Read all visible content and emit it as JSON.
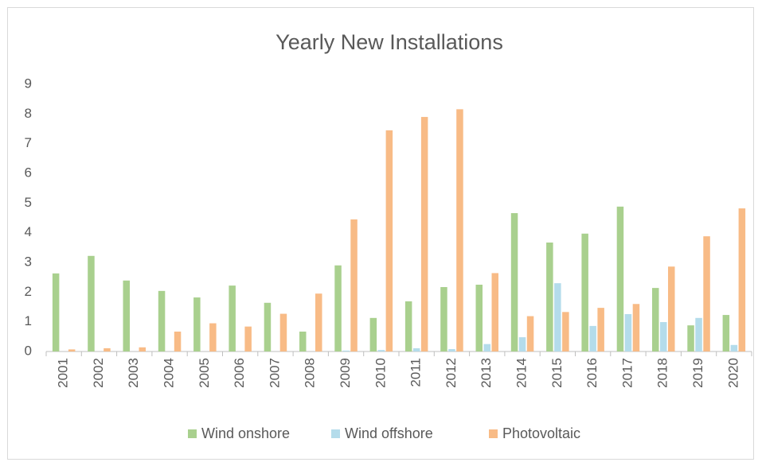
{
  "chart_data": {
    "type": "bar",
    "title": "Yearly New Installations",
    "categories": [
      "2001",
      "2002",
      "2003",
      "2004",
      "2005",
      "2006",
      "2007",
      "2008",
      "2009",
      "2010",
      "2011",
      "2012",
      "2013",
      "2014",
      "2015",
      "2016",
      "2017",
      "2018",
      "2019",
      "2020"
    ],
    "series": [
      {
        "name": "Wind onshore",
        "color": "#a9d08e",
        "values": [
          2.63,
          3.22,
          2.39,
          2.04,
          1.82,
          2.22,
          1.64,
          0.67,
          2.9,
          1.13,
          1.69,
          2.17,
          2.25,
          4.66,
          3.67,
          3.97,
          4.88,
          2.14,
          0.88,
          1.23
        ]
      },
      {
        "name": "Wind offshore",
        "color": "#b4dceb",
        "values": [
          0,
          0,
          0,
          0,
          0,
          0,
          0,
          0,
          0.03,
          0.05,
          0.11,
          0.08,
          0.25,
          0.48,
          2.3,
          0.86,
          1.26,
          0.99,
          1.13,
          0.22
        ]
      },
      {
        "name": "Photovoltaic",
        "color": "#f8bb86",
        "values": [
          0.07,
          0.11,
          0.14,
          0.67,
          0.95,
          0.84,
          1.27,
          1.95,
          4.45,
          7.45,
          7.9,
          8.16,
          2.64,
          1.19,
          1.33,
          1.47,
          1.6,
          2.86,
          3.88,
          4.82
        ]
      }
    ],
    "ylim": [
      0,
      9
    ],
    "yticks": [
      0,
      1,
      2,
      3,
      4,
      5,
      6,
      7,
      8,
      9
    ],
    "grid": false,
    "legend": "bottom"
  }
}
